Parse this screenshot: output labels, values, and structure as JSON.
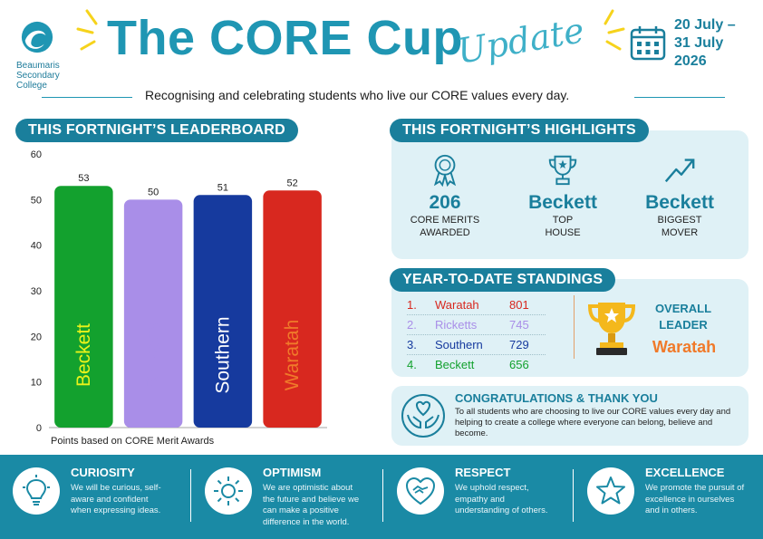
{
  "header": {
    "school_name_lines": [
      "Beaumaris",
      "Secondary",
      "College"
    ],
    "title": "The CORE Cup",
    "update_word": "Update",
    "date_line1": "20 July –",
    "date_line2": "31 July",
    "date_line3": "2026",
    "tagline": "Recognising and celebrating students who live our CORE values every day."
  },
  "leaderboard": {
    "heading": "THIS FORTNIGHT’S LEADERBOARD",
    "caption": "Points based on CORE Merit Awards"
  },
  "chart_data": {
    "type": "bar",
    "categories": [
      "Beckett",
      "Ricketts",
      "Southern",
      "Waratah"
    ],
    "values": [
      53,
      50,
      51,
      52
    ],
    "bar_colors": [
      "#13a12e",
      "#a98ee8",
      "#163a9e",
      "#d8281f"
    ],
    "label_colors": [
      "#e9f31a",
      "#a98ee8",
      "#ffffff",
      "#f07a2a"
    ],
    "ylim": [
      0,
      60
    ],
    "yticks": [
      0,
      10,
      20,
      30,
      40,
      50,
      60
    ],
    "grid": false,
    "data_labels": true
  },
  "highlights": {
    "heading": "THIS FORTNIGHT’S  HIGHLIGHTS",
    "items": [
      {
        "icon": "award-ribbon-icon",
        "value": "206",
        "label1": "CORE MERITS",
        "label2": "AWARDED"
      },
      {
        "icon": "trophy-icon",
        "value": "Beckett",
        "label1": "TOP",
        "label2": "HOUSE"
      },
      {
        "icon": "trend-up-icon",
        "value": "Beckett",
        "label1": "BIGGEST",
        "label2": "MOVER"
      }
    ]
  },
  "standings": {
    "heading": "YEAR-TO-DATE STANDINGS",
    "rows": [
      {
        "rank": "1.",
        "house": "Waratah",
        "points": "801",
        "color": "#d8281f"
      },
      {
        "rank": "2.",
        "house": "Ricketts",
        "points": "745",
        "color": "#a98ee8"
      },
      {
        "rank": "3.",
        "house": "Southern",
        "points": "729",
        "color": "#163a9e"
      },
      {
        "rank": "4.",
        "house": "Beckett",
        "points": "656",
        "color": "#13a12e"
      }
    ],
    "overall_label1": "OVERALL",
    "overall_label2": "LEADER",
    "overall_leader": "Waratah"
  },
  "congrats": {
    "title": "CONGRATULATIONS & THANK YOU",
    "body": "To all students who are choosing to live our CORE values every day and helping to create a college where everyone can belong, believe and become."
  },
  "values": [
    {
      "icon": "lightbulb-icon",
      "title": "CURIOSITY",
      "body": "We will be curious, self-aware and confident when expressing ideas."
    },
    {
      "icon": "sun-icon",
      "title": "OPTIMISM",
      "body": "We are optimistic about the future and believe we can make a positive difference in the world."
    },
    {
      "icon": "handshake-heart-icon",
      "title": "RESPECT",
      "body": "We uphold respect, empathy and understanding of others."
    },
    {
      "icon": "star-icon",
      "title": "EXCELLENCE",
      "body": "We promote the pursuit of excellence in ourselves and in others."
    }
  ],
  "colors": {
    "primary": "#1a7f9c",
    "title": "#1f96b3",
    "panel": "#dff1f6",
    "accent_yellow": "#f6d31c",
    "leader_orange": "#f07a2a"
  }
}
